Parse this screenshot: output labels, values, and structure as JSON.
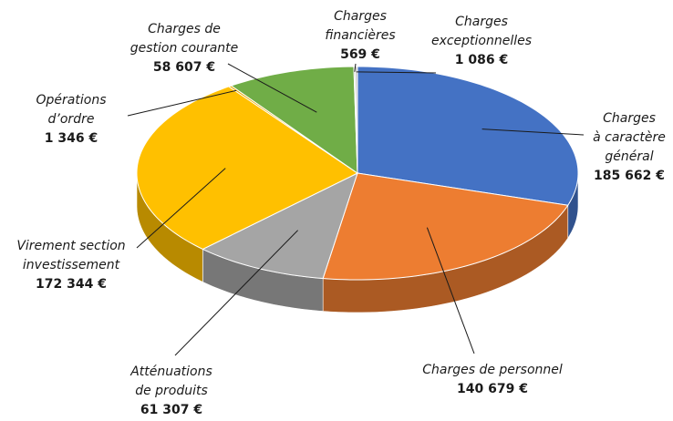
{
  "chart_data": {
    "type": "pie",
    "categories": [
      [
        "Charges",
        "à caractère",
        "général"
      ],
      [
        "Charges de personnel"
      ],
      [
        "Atténuations",
        "de produits"
      ],
      [
        "Virement section",
        "investissement"
      ],
      [
        "Opérations",
        "d’ordre"
      ],
      [
        "Charges de",
        "gestion courante"
      ],
      [
        "Charges",
        "financières"
      ],
      [
        "Charges",
        "exceptionnelles"
      ]
    ],
    "values": [
      185662,
      140679,
      61307,
      172344,
      1346,
      58607,
      569,
      1086
    ],
    "value_labels": [
      "185 662 €",
      "140 679 €",
      "61 307 €",
      "172 344 €",
      "1 346 €",
      "58 607 €",
      "569 €",
      "1 086 €"
    ],
    "colors": [
      "#4472c4",
      "#ed7d31",
      "#a5a5a5",
      "#ffc000",
      "#e8a900",
      "#70ad47",
      "#9e9e9e",
      "#c8c8c8"
    ]
  }
}
